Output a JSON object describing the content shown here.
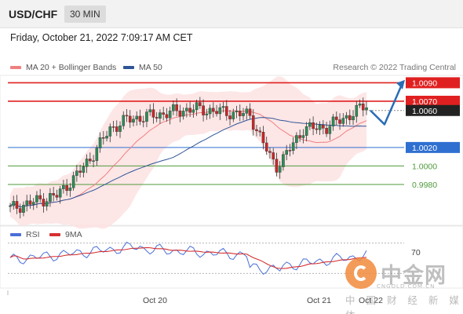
{
  "header": {
    "symbol": "USD/CHF",
    "timeframe": "30 MIN"
  },
  "timestamp": "Friday, October 21, 2022 7:09:17 AM CET",
  "legend": {
    "ma20_label": "MA 20 + Bollinger Bands",
    "ma50_label": "MA 50",
    "ma20_color": "#f08080",
    "ma50_color": "#2f5597"
  },
  "credit": "Research © 2022 Trading Central",
  "rsi_legend": {
    "rsi_label": "RSI",
    "ma9_label": "9MA",
    "rsi_color": "#4a6fd8",
    "ma9_color": "#d63030"
  },
  "chart_data": {
    "type": "candlestick",
    "price_range": [
      0.9935,
      1.0098
    ],
    "levels": [
      {
        "value": 1.009,
        "label": "1.0090",
        "kind": "resistance",
        "color": "#e02020"
      },
      {
        "value": 1.007,
        "label": "1.0070",
        "kind": "resistance",
        "color": "#e02020"
      },
      {
        "value": 1.006,
        "label": "1.0060",
        "kind": "current",
        "color": "#333333"
      },
      {
        "value": 1.002,
        "label": "1.0020",
        "kind": "pivot",
        "color": "#2f6fd0"
      },
      {
        "value": 1.0,
        "label": "1.0000",
        "kind": "support",
        "color": "#4e9a3a"
      },
      {
        "value": 0.998,
        "label": "0.9980",
        "kind": "support",
        "color": "#4e9a3a"
      }
    ],
    "rsi": {
      "level": "70",
      "range": [
        20,
        80
      ]
    },
    "x_ticks": [
      "Oct 20",
      "Oct 21",
      "Oct 22"
    ],
    "scenario_path": [
      1.006,
      1.0045,
      1.0088
    ]
  },
  "watermark": {
    "title": "中金网",
    "url": "CNGOLD.COM.CN",
    "tagline": "中 国 财 经 新 媒 体"
  }
}
